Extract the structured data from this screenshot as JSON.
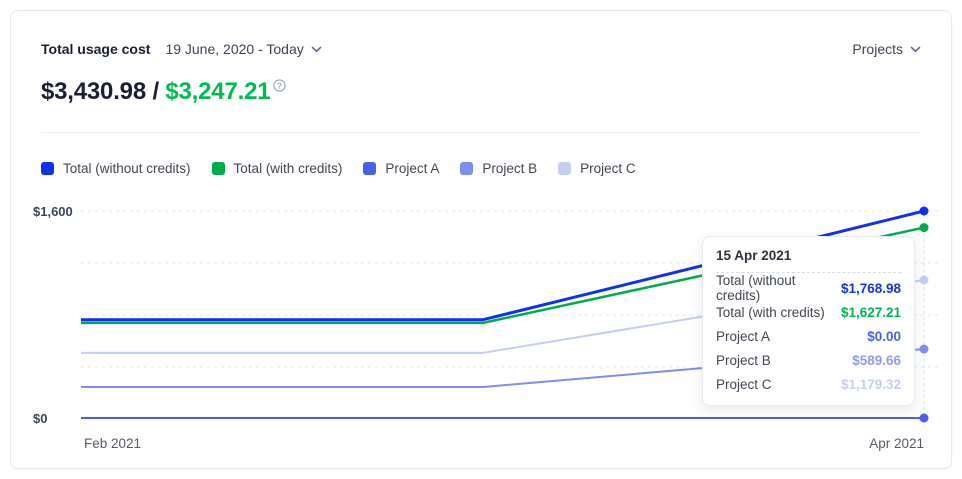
{
  "header": {
    "title": "Total usage cost",
    "date_range": "19 June, 2020 - Today",
    "projects_dropdown": "Projects"
  },
  "summary": {
    "total_without_credits": "$3,430.98",
    "separator": " / ",
    "total_with_credits": "$3,247.21",
    "info_icon": "info-circle"
  },
  "colors": {
    "total_without_credits": "#0f2ff2",
    "total_with_credits": "#00ab4e",
    "project_a": "#4760f0",
    "project_b": "#7d8ef1",
    "project_c": "#c3cdf6",
    "amount_green": "#00bc4f",
    "tooltip_value_blue": "#1733e0"
  },
  "legend": [
    {
      "label": "Total (without credits)",
      "color": "#0f2ff2"
    },
    {
      "label": "Total (with credits)",
      "color": "#00ab4e"
    },
    {
      "label": "Project A",
      "color": "#4760f0"
    },
    {
      "label": "Project B",
      "color": "#7d8ef1"
    },
    {
      "label": "Project C",
      "color": "#c3cdf6"
    }
  ],
  "chart_data": {
    "type": "line",
    "title": "Total usage cost over time",
    "x_axis_labels": [
      "Feb 2021",
      "Apr 2021"
    ],
    "y_axis_labels": [
      "$1,600",
      "$0"
    ],
    "y_axis_top_value": 1600,
    "v_max": 1768.98,
    "grid": "dashed-horizontal",
    "legend_position": "top",
    "hover_x_label": "15 Apr 2021",
    "series": [
      {
        "name": "Project C",
        "color": "#c3cdf6",
        "width": 2,
        "x_frac": [
          0,
          0.477,
          1
        ],
        "values": [
          557,
          557,
          1179.32
        ]
      },
      {
        "name": "Project B",
        "color": "#7d8ef1",
        "width": 2,
        "x_frac": [
          0,
          0.477,
          1
        ],
        "values": [
          265,
          265,
          589.66
        ]
      },
      {
        "name": "Project A",
        "color": "#4760f0",
        "width": 2,
        "x_frac": [
          0,
          1
        ],
        "values": [
          0,
          0
        ]
      },
      {
        "name": "Total (with credits)",
        "color": "#00ab4e",
        "width": 2.5,
        "x_frac": [
          0,
          0.477,
          1
        ],
        "values": [
          813,
          813,
          1627.21
        ]
      },
      {
        "name": "Total (without credits)",
        "color": "#0f2ff2",
        "width": 3,
        "x_frac": [
          0,
          0.477,
          1
        ],
        "values": [
          840,
          840,
          1768.98
        ]
      }
    ]
  },
  "tooltip": {
    "date": "15 Apr 2021",
    "rows": [
      {
        "label": "Total (without credits)",
        "value": "$1,768.98",
        "color": "#1733e0"
      },
      {
        "label": "Total (with credits)",
        "value": "$1,627.21",
        "color": "#00b44d"
      },
      {
        "label": "Project A",
        "value": "$0.00",
        "color": "#4760f0"
      },
      {
        "label": "Project B",
        "value": "$589.66",
        "color": "#8d9cf3"
      },
      {
        "label": "Project C",
        "value": "$1,179.32",
        "color": "#c3cdf6"
      }
    ]
  }
}
